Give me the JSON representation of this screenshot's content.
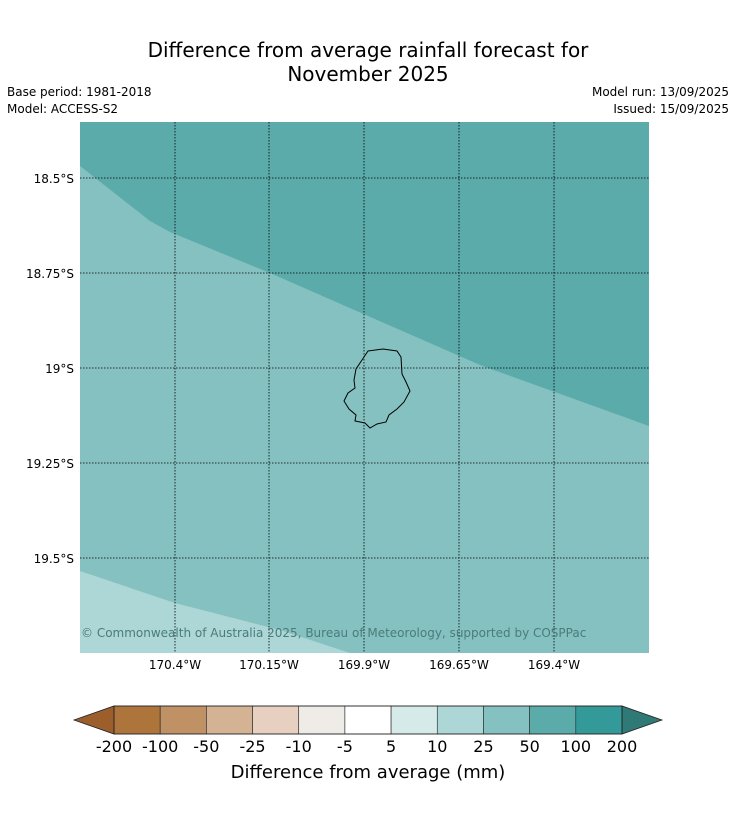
{
  "title_line1": "Difference from average rainfall forecast for",
  "title_line2": "November 2025",
  "base_period": "Base period: 1981-2018",
  "model": "Model: ACCESS-S2",
  "model_run": "Model run: 13/09/2025",
  "issued": "Issued: 15/09/2025",
  "map": {
    "lat_labels": [
      "18.5°S",
      "18.75°S",
      "19°S",
      "19.25°S",
      "19.5°S"
    ],
    "lon_labels": [
      "170.4°W",
      "170.15°W",
      "169.9°W",
      "169.65°W",
      "169.4°W"
    ],
    "copyright": "© Commonwealth of Australia 2025, Bureau of Meteorology, supported by COSPPac",
    "zone_colors": {
      "light": "#add6d6",
      "mid": "#85c1c0",
      "dark": "#5babab"
    }
  },
  "colorbar": {
    "tick_labels": [
      "-200",
      "-100",
      "-50",
      "-25",
      "-10",
      "-5",
      "5",
      "10",
      "25",
      "50",
      "100",
      "200"
    ],
    "label": "Difference from average (mm)",
    "extend_low_color": "#9c5f2c",
    "extend_high_color": "#2f7a76",
    "bin_colors": [
      "#ad743c",
      "#c19166",
      "#d4b294",
      "#e7d0bf",
      "#efebe7",
      "#ffffff",
      "#d6eaea",
      "#add6d6",
      "#85c1c0",
      "#5babab",
      "#349a99"
    ]
  }
}
